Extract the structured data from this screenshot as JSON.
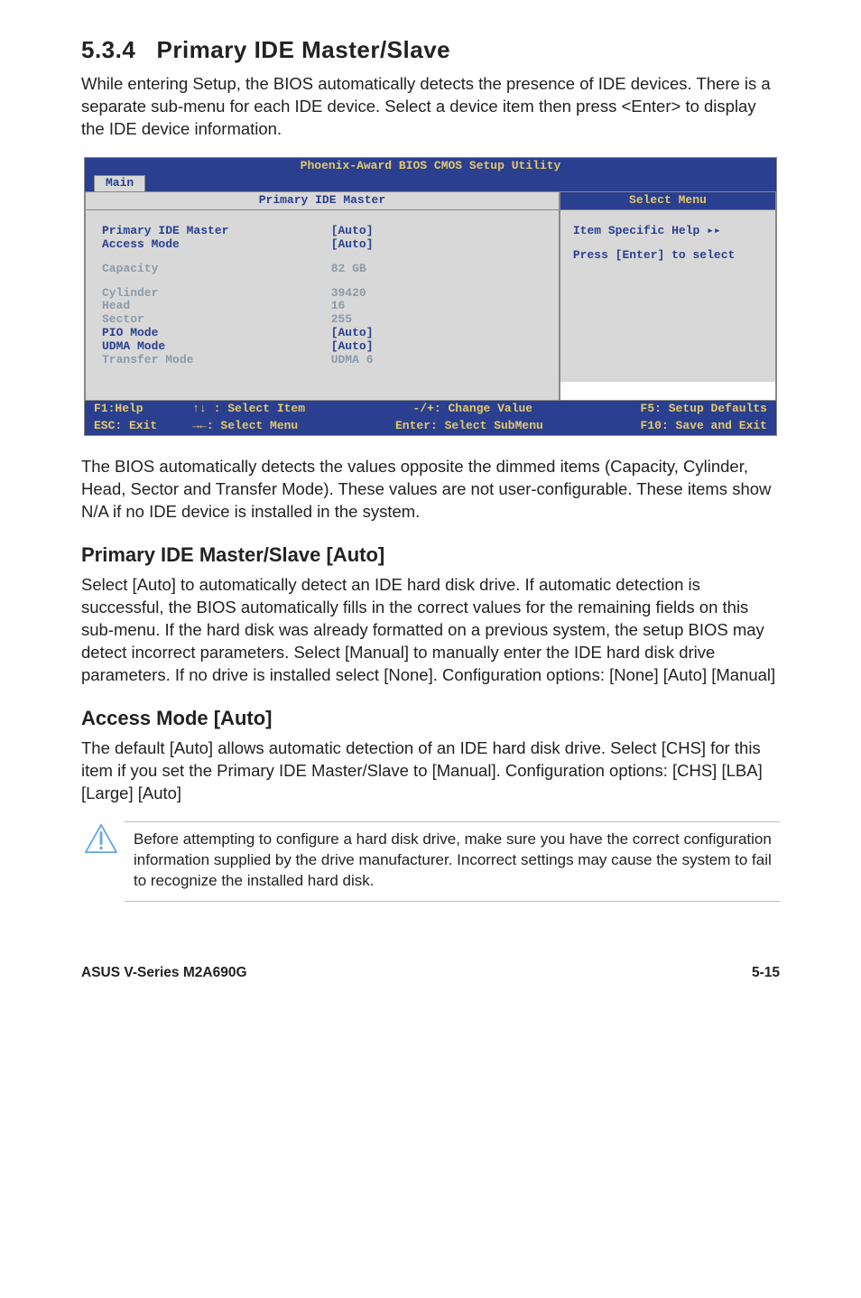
{
  "section_number": "5.3.4",
  "section_title": "Primary IDE Master/Slave",
  "intro_paragraph": "While entering Setup, the BIOS automatically detects the presence of IDE devices. There is a separate sub-menu for each IDE device. Select a device item then press <Enter> to display the IDE device information.",
  "bios": {
    "title": "Phoenix-Award BIOS CMOS Setup Utility",
    "tab": "Main",
    "left_header": "Primary IDE Master",
    "right_header": "Select Menu",
    "rows": [
      {
        "label": "Primary IDE Master",
        "value": "[Auto]",
        "style": "bold"
      },
      {
        "label": "Access Mode",
        "value": "[Auto]",
        "style": "bold"
      },
      {
        "label": "",
        "value": "",
        "style": "spacer"
      },
      {
        "label": "Capacity",
        "value": "82 GB",
        "style": "dim"
      },
      {
        "label": "",
        "value": "",
        "style": "spacer"
      },
      {
        "label": "Cylinder",
        "value": "39420",
        "style": "dim"
      },
      {
        "label": "Head",
        "value": "16",
        "style": "dim"
      },
      {
        "label": "Sector",
        "value": "255",
        "style": "dim"
      },
      {
        "label": "PIO Mode",
        "value": "[Auto]",
        "style": "bold"
      },
      {
        "label": "UDMA Mode",
        "value": "[Auto]",
        "style": "bold"
      },
      {
        "label": "Transfer Mode",
        "value": "UDMA 6",
        "style": "dim"
      }
    ],
    "help_line1": "Item Specific Help ▸▸",
    "help_line2": "Press [Enter] to select",
    "footer": {
      "c1": "F1:Help       ↑↓ : Select Item",
      "c2": "-/+: Change Value",
      "c3": "F5: Setup Defaults",
      "c1b": "ESC: Exit     →←: Select Menu",
      "c2b": "Enter: Select SubMenu",
      "c3b": "F10: Save and Exit"
    }
  },
  "after_bios_paragraph": "The BIOS automatically detects the values opposite the dimmed items (Capacity, Cylinder,  Head, Sector and Transfer Mode). These values are not user-configurable. These items show N/A if no IDE device is installed in the system.",
  "sub1_title": "Primary IDE Master/Slave [Auto]",
  "sub1_body": "Select [Auto] to automatically detect an IDE hard disk drive. If automatic detection is successful, the BIOS automatically fills in the correct values for the remaining fields on this sub-menu. If the hard disk was already formatted on a previous system, the setup BIOS may detect incorrect parameters. Select [Manual] to manually enter the IDE hard disk drive parameters. If no drive is installed select [None]. Configuration options: [None] [Auto] [Manual]",
  "sub2_title": "Access Mode [Auto]",
  "sub2_body": "The default [Auto] allows automatic detection of an IDE hard disk drive. Select [CHS] for this item if you set the Primary IDE Master/Slave to [Manual]. Configuration options: [CHS] [LBA] [Large] [Auto]",
  "note_text": "Before attempting to configure a hard disk drive, make sure you have the correct configuration information supplied by the drive manufacturer. Incorrect settings may cause the system to fail to recognize the installed hard disk.",
  "footer_left": "ASUS V-Series M2A690G",
  "footer_right": "5-15",
  "colors": {
    "bios_blue": "#2a3f8f",
    "bios_yellow": "#e4c96a",
    "bios_gray": "#d8d8d8",
    "dim_text": "#8e9aa6",
    "note_icon_stroke": "#6aa6e6"
  }
}
